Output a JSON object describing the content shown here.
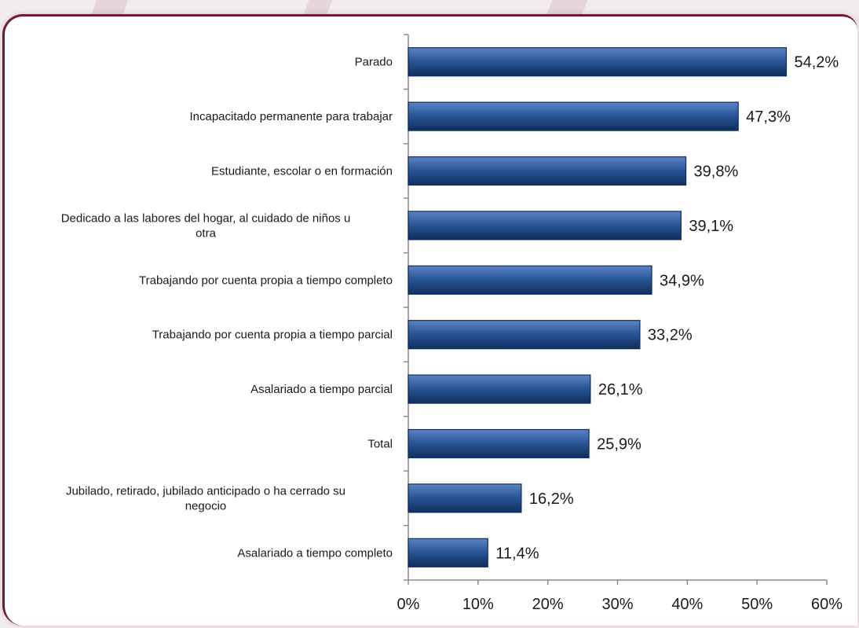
{
  "colors": {
    "bar": "#2b579a",
    "bar_dark": "#0f2e5c",
    "bar_light": "#5b84c4",
    "axis": "#8c8c8c",
    "frame": "#6d1a3c"
  },
  "chart_data": {
    "type": "bar",
    "orientation": "horizontal",
    "title": "",
    "xlabel": "",
    "ylabel": "",
    "xlim": [
      0,
      60
    ],
    "x_ticks": [
      0,
      10,
      20,
      30,
      40,
      50,
      60
    ],
    "x_tick_labels": [
      "0%",
      "10%",
      "20%",
      "30%",
      "40%",
      "50%",
      "60%"
    ],
    "grid": false,
    "legend": "none",
    "categories": [
      [
        "Parado"
      ],
      [
        "Incapacitado permanente para trabajar"
      ],
      [
        "Estudiante, escolar o en formación"
      ],
      [
        "Dedicado a las labores del hogar, al cuidado de niños u",
        "otra"
      ],
      [
        "Trabajando por cuenta propia a tiempo completo"
      ],
      [
        "Trabajando por cuenta propia a tiempo parcial"
      ],
      [
        "Asalariado a tiempo parcial"
      ],
      [
        "Total"
      ],
      [
        "Jubilado, retirado, jubilado anticipado o ha cerrado su",
        "negocio"
      ],
      [
        "Asalariado a tiempo completo"
      ]
    ],
    "values": [
      54.2,
      47.3,
      39.8,
      39.1,
      34.9,
      33.2,
      26.1,
      25.9,
      16.2,
      11.4
    ],
    "value_labels": [
      "54,2%",
      "47,3%",
      "39,8%",
      "39,1%",
      "34,9%",
      "33,2%",
      "26,1%",
      "25,9%",
      "16,2%",
      "11,4%"
    ]
  }
}
